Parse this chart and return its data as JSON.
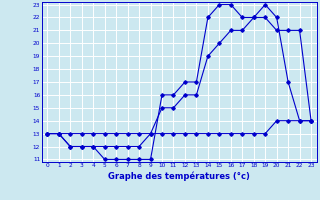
{
  "line1_x": [
    0,
    1,
    2,
    3,
    4,
    5,
    6,
    7,
    8,
    9,
    10,
    11,
    12,
    13,
    14,
    15,
    16,
    17,
    18,
    19,
    20,
    21,
    22,
    23
  ],
  "line1_y": [
    13,
    13,
    12,
    12,
    12,
    11,
    11,
    11,
    11,
    11,
    16,
    16,
    17,
    17,
    22,
    23,
    23,
    22,
    22,
    23,
    22,
    17,
    14,
    14
  ],
  "line2_x": [
    0,
    1,
    2,
    3,
    4,
    5,
    6,
    7,
    8,
    9,
    10,
    11,
    12,
    13,
    14,
    15,
    16,
    17,
    18,
    19,
    20,
    21,
    22,
    23
  ],
  "line2_y": [
    13,
    13,
    13,
    13,
    13,
    13,
    13,
    13,
    13,
    13,
    15,
    15,
    16,
    16,
    19,
    20,
    21,
    21,
    22,
    22,
    21,
    21,
    21,
    14
  ],
  "line3_x": [
    0,
    1,
    2,
    3,
    4,
    5,
    6,
    7,
    8,
    9,
    10,
    11,
    12,
    13,
    14,
    15,
    16,
    17,
    18,
    19,
    20,
    21,
    22,
    23
  ],
  "line3_y": [
    13,
    13,
    12,
    12,
    12,
    12,
    12,
    12,
    12,
    13,
    13,
    13,
    13,
    13,
    13,
    13,
    13,
    13,
    13,
    13,
    14,
    14,
    14,
    14
  ],
  "line_color": "#0000cc",
  "bg_color": "#cce8f0",
  "grid_color": "#ffffff",
  "xlabel": "Graphe des températures (°c)",
  "xlim": [
    -0.5,
    23.5
  ],
  "ylim": [
    10.8,
    23.2
  ],
  "xtick_labels": [
    "0",
    "1",
    "2",
    "3",
    "4",
    "5",
    "6",
    "7",
    "8",
    "9",
    "10",
    "11",
    "12",
    "13",
    "14",
    "15",
    "16",
    "17",
    "18",
    "19",
    "20",
    "21",
    "22",
    "23"
  ],
  "ytick_labels": [
    "11",
    "12",
    "13",
    "14",
    "15",
    "16",
    "17",
    "18",
    "19",
    "20",
    "21",
    "22",
    "23"
  ]
}
